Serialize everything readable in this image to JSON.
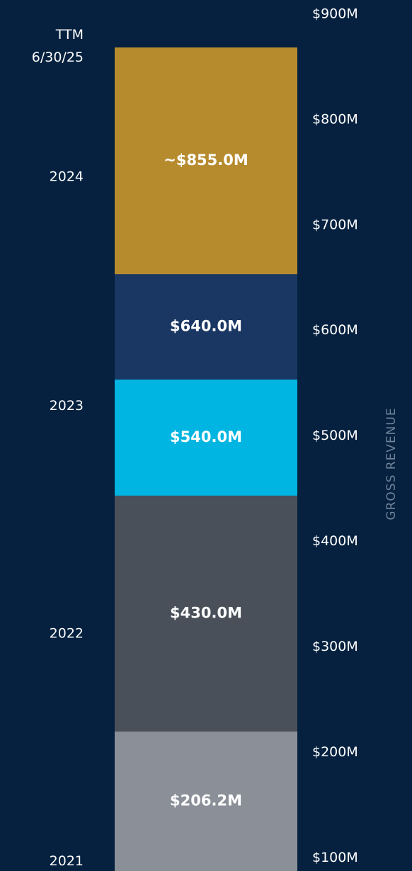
{
  "chart_data": {
    "type": "bar",
    "values": [
      855,
      640,
      540,
      430,
      206.2
    ],
    "value_labels": [
      "~$855.0M",
      "$640.0M",
      "$540.0M",
      "$430.0M",
      "$206.2M"
    ],
    "colors": [
      "#b68b2e",
      "#1a3763",
      "#00b5e2",
      "#495059",
      "#8b9098"
    ],
    "y_axis_label": "GROSS REVENUE",
    "ylim": [
      74,
      900
    ],
    "yticks": [
      {
        "value": 900,
        "label": "$900M"
      },
      {
        "value": 800,
        "label": "$800M"
      },
      {
        "value": 700,
        "label": "$700M"
      },
      {
        "value": 600,
        "label": "$600M"
      },
      {
        "value": 500,
        "label": "$500M"
      },
      {
        "value": 400,
        "label": "$400M"
      },
      {
        "value": 300,
        "label": "$300M"
      },
      {
        "value": 200,
        "label": "$200M"
      },
      {
        "value": 100,
        "label": "$100M"
      }
    ],
    "y2lim": [
      74,
      900
    ],
    "y2ticks": [
      {
        "value": 856,
        "label": [
          "TTM",
          "6/30/25"
        ]
      },
      {
        "value": 732,
        "label": [
          "2024"
        ]
      },
      {
        "value": 515,
        "label": [
          "2023"
        ]
      },
      {
        "value": 299,
        "label": [
          "2022"
        ]
      },
      {
        "value": 83,
        "label": [
          "2021"
        ]
      }
    ]
  }
}
